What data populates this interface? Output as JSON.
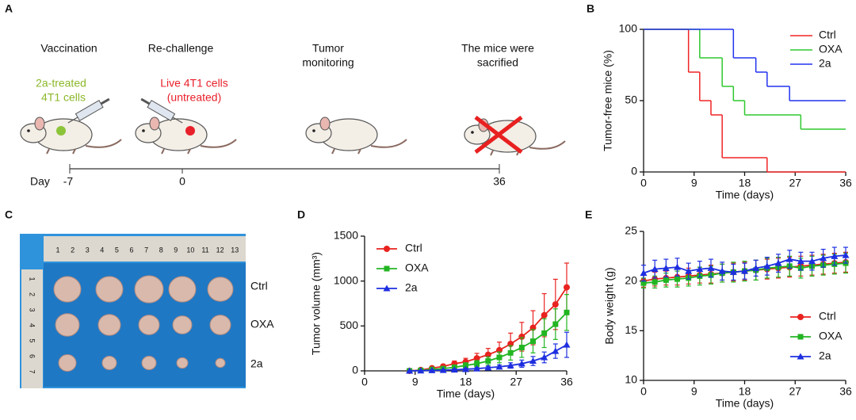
{
  "panel_a": {
    "letter": "A",
    "steps": [
      [
        "Vaccination"
      ],
      [
        "Re-challenge"
      ],
      [
        "Tumor",
        "monitoring"
      ],
      [
        "The mice were",
        "sacrified"
      ]
    ],
    "vaccine_note": [
      "2a-treated",
      "4T1 cells"
    ],
    "challenge_note": [
      "Live 4T1 cells",
      "(untreated)"
    ],
    "timeline_label": "Day",
    "timeline_days": [
      "-7",
      "0",
      "36"
    ]
  },
  "panel_c": {
    "letter": "C",
    "ruler_top": [
      "1",
      "2",
      "3",
      "4",
      "5",
      "6",
      "7",
      "8",
      "9",
      "10",
      "11",
      "12",
      "13"
    ],
    "ruler_left": [
      "1",
      "2",
      "3",
      "4",
      "5",
      "6",
      "7"
    ],
    "labels": [
      "Ctrl",
      "OXA",
      "2a"
    ]
  },
  "chart_data": [
    {
      "type": "step",
      "panel": "B",
      "x_label": "Time (days)",
      "y_label": "Tumor-free mice (%)",
      "xlim": [
        0,
        36
      ],
      "ylim": [
        0,
        100
      ],
      "xticks": [
        0,
        9,
        18,
        27,
        36
      ],
      "yticks": [
        0,
        50,
        100
      ],
      "legend": "upper right",
      "series": [
        {
          "name": "Ctrl",
          "color": "#f02424",
          "x": [
            0,
            8,
            10,
            12,
            14,
            22
          ],
          "values": [
            100,
            70,
            50,
            40,
            10,
            0
          ]
        },
        {
          "name": "OXA",
          "color": "#2ec82e",
          "x": [
            0,
            10,
            14,
            16,
            18,
            28
          ],
          "values": [
            100,
            80,
            60,
            50,
            40,
            30
          ]
        },
        {
          "name": "2a",
          "color": "#2233ee",
          "x": [
            0,
            16,
            20,
            22,
            26
          ],
          "values": [
            100,
            80,
            70,
            60,
            50
          ]
        }
      ]
    },
    {
      "type": "line",
      "panel": "D",
      "x_label": "Time (days)",
      "y_label": "Tumor volume (mm³)",
      "xlim": [
        0,
        36
      ],
      "ylim": [
        0,
        1500
      ],
      "xticks": [
        0,
        9,
        18,
        27,
        36
      ],
      "yticks": [
        0,
        500,
        1000,
        1500
      ],
      "legend": "upper left",
      "x": [
        8,
        10,
        12,
        14,
        16,
        18,
        20,
        22,
        24,
        26,
        28,
        30,
        32,
        34,
        36
      ],
      "series": [
        {
          "name": "Ctrl",
          "color": "#e8231f",
          "marker": "circle",
          "values": [
            0,
            10,
            30,
            50,
            80,
            100,
            140,
            180,
            230,
            300,
            380,
            480,
            620,
            740,
            930
          ],
          "errors": [
            0,
            5,
            15,
            20,
            30,
            40,
            55,
            70,
            90,
            120,
            160,
            190,
            240,
            280,
            270
          ]
        },
        {
          "name": "OXA",
          "color": "#22b522",
          "marker": "square",
          "values": [
            0,
            5,
            15,
            25,
            40,
            60,
            80,
            110,
            150,
            200,
            260,
            330,
            420,
            520,
            650
          ],
          "errors": [
            0,
            5,
            10,
            15,
            20,
            30,
            35,
            45,
            60,
            80,
            110,
            130,
            160,
            170,
            200
          ]
        },
        {
          "name": "2a",
          "color": "#1e2fe0",
          "marker": "triangle",
          "values": [
            0,
            2,
            5,
            8,
            12,
            18,
            25,
            35,
            45,
            60,
            80,
            110,
            150,
            220,
            290
          ],
          "errors": [
            0,
            2,
            3,
            5,
            8,
            10,
            12,
            15,
            20,
            30,
            40,
            50,
            60,
            80,
            140
          ]
        }
      ]
    },
    {
      "type": "line",
      "panel": "E",
      "x_label": "Time (days)",
      "y_label": "Body weight (g)",
      "xlim": [
        0,
        36
      ],
      "ylim": [
        10,
        25
      ],
      "xticks": [
        0,
        9,
        18,
        27,
        36
      ],
      "yticks": [
        10,
        15,
        20,
        25
      ],
      "legend": "lower right",
      "x": [
        0,
        2,
        4,
        6,
        8,
        10,
        12,
        14,
        16,
        18,
        20,
        22,
        24,
        26,
        28,
        30,
        32,
        34,
        36
      ],
      "series": [
        {
          "name": "Ctrl",
          "color": "#e8231f",
          "marker": "circle",
          "values": [
            20.0,
            20.2,
            20.3,
            20.4,
            20.5,
            20.6,
            20.7,
            20.8,
            20.9,
            21.0,
            21.1,
            21.2,
            21.3,
            21.4,
            21.5,
            21.6,
            21.7,
            21.8,
            21.9
          ],
          "errors": [
            0.6,
            0.7,
            0.7,
            0.8,
            0.8,
            0.8,
            0.9,
            0.9,
            0.9,
            0.9,
            1.0,
            1.0,
            1.0,
            1.0,
            1.0,
            1.0,
            1.0,
            1.0,
            1.0
          ]
        },
        {
          "name": "OXA",
          "color": "#22b522",
          "marker": "square",
          "values": [
            19.8,
            19.9,
            20.1,
            20.2,
            20.3,
            20.5,
            20.6,
            20.8,
            20.9,
            21.0,
            21.1,
            21.3,
            21.4,
            21.5,
            21.3,
            21.5,
            21.6,
            21.7,
            21.8
          ],
          "errors": [
            0.5,
            0.6,
            0.7,
            0.8,
            0.8,
            0.9,
            0.9,
            0.9,
            1.0,
            1.0,
            1.0,
            1.0,
            1.0,
            1.0,
            1.0,
            1.0,
            1.0,
            1.0,
            1.0
          ]
        },
        {
          "name": "2a",
          "color": "#1e2fe0",
          "marker": "triangle",
          "values": [
            20.8,
            21.2,
            21.3,
            21.4,
            21.0,
            21.2,
            21.3,
            21.0,
            20.9,
            21.0,
            21.3,
            21.5,
            21.8,
            22.2,
            22.0,
            22.0,
            22.3,
            22.5,
            22.6
          ],
          "errors": [
            0.8,
            0.9,
            0.9,
            0.9,
            0.8,
            0.8,
            0.9,
            0.9,
            0.8,
            0.8,
            0.8,
            0.9,
            0.9,
            0.9,
            0.9,
            0.9,
            0.9,
            0.9,
            0.8
          ]
        }
      ]
    }
  ]
}
